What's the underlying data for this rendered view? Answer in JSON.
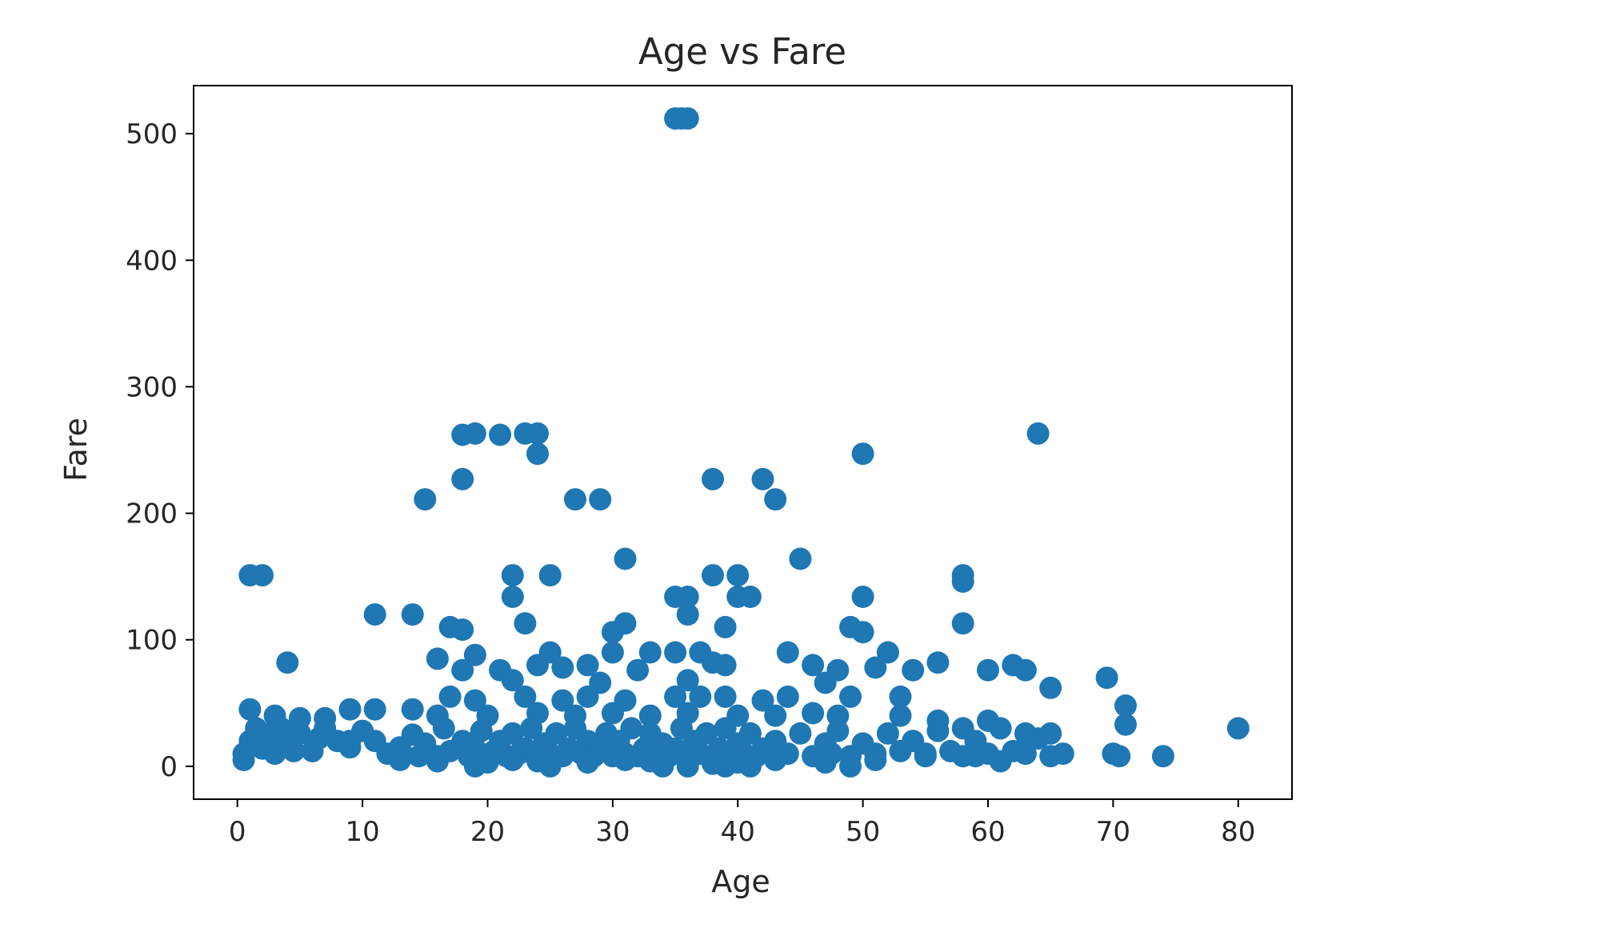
{
  "chart_data": {
    "type": "scatter",
    "title": "Age vs Fare",
    "xlabel": "Age",
    "ylabel": "Fare",
    "xlim": [
      -3.5,
      84.3
    ],
    "ylim": [
      -26,
      538
    ],
    "xticks": [
      0,
      10,
      20,
      30,
      40,
      50,
      60,
      70,
      80
    ],
    "yticks": [
      0,
      100,
      200,
      300,
      400,
      500
    ],
    "grid": false,
    "legend": "none",
    "marker_color": "#1f77b4",
    "series": [
      {
        "points": [
          [
            35,
            512
          ],
          [
            35.5,
            512
          ],
          [
            36,
            512
          ],
          [
            18,
            262
          ],
          [
            19,
            263
          ],
          [
            21,
            262
          ],
          [
            23,
            263
          ],
          [
            24,
            263
          ],
          [
            24,
            247
          ],
          [
            64,
            263
          ],
          [
            50,
            247
          ],
          [
            18,
            227
          ],
          [
            38,
            227
          ],
          [
            42,
            227
          ],
          [
            15,
            211
          ],
          [
            27,
            211
          ],
          [
            29,
            211
          ],
          [
            43,
            211
          ],
          [
            31,
            164
          ],
          [
            45,
            164
          ],
          [
            1,
            151
          ],
          [
            2,
            151
          ],
          [
            22,
            151
          ],
          [
            25,
            151
          ],
          [
            38,
            151
          ],
          [
            40,
            151
          ],
          [
            58,
            151
          ],
          [
            58,
            146
          ],
          [
            22,
            134
          ],
          [
            35,
            134
          ],
          [
            36,
            134
          ],
          [
            40,
            134
          ],
          [
            41,
            134
          ],
          [
            50,
            134
          ],
          [
            11,
            120
          ],
          [
            14,
            120
          ],
          [
            36,
            120
          ],
          [
            23,
            113
          ],
          [
            31,
            113
          ],
          [
            39,
            110
          ],
          [
            49,
            110
          ],
          [
            58,
            113
          ],
          [
            17,
            110
          ],
          [
            18,
            108
          ],
          [
            30,
            106
          ],
          [
            50,
            106
          ],
          [
            4,
            82
          ],
          [
            16,
            85
          ],
          [
            19,
            88
          ],
          [
            25,
            90
          ],
          [
            30,
            90
          ],
          [
            33,
            90
          ],
          [
            35,
            90
          ],
          [
            37,
            90
          ],
          [
            44,
            90
          ],
          [
            52,
            90
          ],
          [
            18,
            76
          ],
          [
            21,
            76
          ],
          [
            24,
            80
          ],
          [
            26,
            78
          ],
          [
            28,
            80
          ],
          [
            32,
            76
          ],
          [
            38,
            82
          ],
          [
            39,
            80
          ],
          [
            46,
            80
          ],
          [
            48,
            76
          ],
          [
            51,
            78
          ],
          [
            54,
            76
          ],
          [
            56,
            82
          ],
          [
            60,
            76
          ],
          [
            62,
            80
          ],
          [
            63,
            76
          ],
          [
            22,
            68
          ],
          [
            29,
            66
          ],
          [
            36,
            68
          ],
          [
            47,
            66
          ],
          [
            69.5,
            70
          ],
          [
            65,
            62
          ],
          [
            17,
            55
          ],
          [
            19,
            52
          ],
          [
            23,
            55
          ],
          [
            26,
            52
          ],
          [
            28,
            55
          ],
          [
            31,
            52
          ],
          [
            35,
            55
          ],
          [
            37,
            55
          ],
          [
            39,
            55
          ],
          [
            42,
            52
          ],
          [
            44,
            55
          ],
          [
            49,
            55
          ],
          [
            53,
            55
          ],
          [
            71,
            48
          ],
          [
            71,
            33
          ],
          [
            1,
            45
          ],
          [
            3,
            40
          ],
          [
            5,
            38
          ],
          [
            7,
            38
          ],
          [
            9,
            45
          ],
          [
            11,
            45
          ],
          [
            14,
            45
          ],
          [
            16,
            40
          ],
          [
            20,
            40
          ],
          [
            24,
            42
          ],
          [
            27,
            40
          ],
          [
            30,
            42
          ],
          [
            33,
            40
          ],
          [
            36,
            42
          ],
          [
            40,
            40
          ],
          [
            43,
            40
          ],
          [
            46,
            42
          ],
          [
            48,
            40
          ],
          [
            53,
            40
          ],
          [
            56,
            36
          ],
          [
            60,
            36
          ],
          [
            58,
            30
          ],
          [
            80,
            30
          ],
          [
            0.5,
            10
          ],
          [
            1,
            20
          ],
          [
            1.5,
            30
          ],
          [
            2,
            14
          ],
          [
            2.5,
            25
          ],
          [
            3,
            10
          ],
          [
            3.5,
            30
          ],
          [
            4,
            18
          ],
          [
            4.5,
            12
          ],
          [
            5,
            26
          ],
          [
            6,
            12
          ],
          [
            6.5,
            22
          ],
          [
            7,
            30
          ],
          [
            8,
            20
          ],
          [
            9,
            15
          ],
          [
            10,
            28
          ],
          [
            11,
            20
          ],
          [
            12,
            10
          ],
          [
            13,
            15
          ],
          [
            14,
            25
          ],
          [
            14.5,
            8
          ],
          [
            15,
            18
          ],
          [
            16,
            8
          ],
          [
            16.5,
            30
          ],
          [
            17,
            12
          ],
          [
            18,
            20
          ],
          [
            18.5,
            8
          ],
          [
            19,
            14
          ],
          [
            19.5,
            28
          ],
          [
            20,
            8
          ],
          [
            20.5,
            12
          ],
          [
            21,
            20
          ],
          [
            21.5,
            8
          ],
          [
            22,
            26
          ],
          [
            22.5,
            10
          ],
          [
            23,
            14
          ],
          [
            23.5,
            30
          ],
          [
            24,
            8
          ],
          [
            24.5,
            18
          ],
          [
            25,
            10
          ],
          [
            25.5,
            26
          ],
          [
            26,
            8
          ],
          [
            26.5,
            14
          ],
          [
            27,
            30
          ],
          [
            27.5,
            10
          ],
          [
            28,
            20
          ],
          [
            28.5,
            8
          ],
          [
            29,
            14
          ],
          [
            29.5,
            26
          ],
          [
            30,
            8
          ],
          [
            30.5,
            20
          ],
          [
            31,
            10
          ],
          [
            31.5,
            30
          ],
          [
            32,
            8
          ],
          [
            32.5,
            14
          ],
          [
            33,
            26
          ],
          [
            33.5,
            10
          ],
          [
            34,
            18
          ],
          [
            34.5,
            8
          ],
          [
            35,
            14
          ],
          [
            35.5,
            30
          ],
          [
            36,
            8
          ],
          [
            36.5,
            20
          ],
          [
            37,
            10
          ],
          [
            37.5,
            26
          ],
          [
            38,
            8
          ],
          [
            38.5,
            14
          ],
          [
            39,
            30
          ],
          [
            39.5,
            8
          ],
          [
            40,
            18
          ],
          [
            40.5,
            10
          ],
          [
            41,
            26
          ],
          [
            41.5,
            8
          ],
          [
            42,
            14
          ],
          [
            43,
            20
          ],
          [
            44,
            10
          ],
          [
            45,
            26
          ],
          [
            46,
            8
          ],
          [
            47,
            18
          ],
          [
            47.5,
            10
          ],
          [
            48,
            28
          ],
          [
            49,
            8
          ],
          [
            50,
            18
          ],
          [
            51,
            10
          ],
          [
            52,
            26
          ],
          [
            53,
            12
          ],
          [
            54,
            20
          ],
          [
            55,
            10
          ],
          [
            56,
            28
          ],
          [
            57,
            12
          ],
          [
            58,
            8
          ],
          [
            59,
            20
          ],
          [
            60,
            10
          ],
          [
            61,
            30
          ],
          [
            62,
            12
          ],
          [
            63,
            26
          ],
          [
            64,
            22
          ],
          [
            65,
            26
          ],
          [
            66,
            10
          ],
          [
            70,
            10
          ],
          [
            70.5,
            8
          ],
          [
            74,
            8
          ],
          [
            0.5,
            5
          ],
          [
            9,
            20
          ],
          [
            13,
            5
          ],
          [
            16,
            4
          ],
          [
            19,
            0
          ],
          [
            20,
            3
          ],
          [
            22,
            5
          ],
          [
            24,
            4
          ],
          [
            25,
            0
          ],
          [
            28,
            3
          ],
          [
            31,
            5
          ],
          [
            33,
            4
          ],
          [
            34,
            0
          ],
          [
            36,
            0
          ],
          [
            38,
            2
          ],
          [
            39,
            0
          ],
          [
            40,
            3
          ],
          [
            41,
            0
          ],
          [
            43,
            5
          ],
          [
            47,
            3
          ],
          [
            49,
            0
          ],
          [
            51,
            5
          ],
          [
            55,
            8
          ],
          [
            59,
            8
          ],
          [
            61,
            4
          ],
          [
            63,
            10
          ],
          [
            65,
            8
          ]
        ]
      }
    ]
  }
}
